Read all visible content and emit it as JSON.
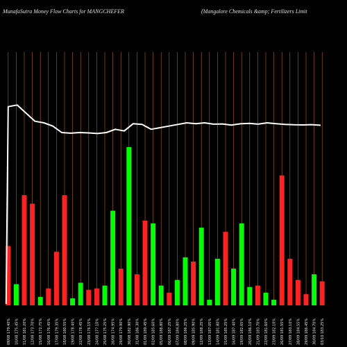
{
  "header": {
    "left": "MunafaSutra  Money Flow  Charts for MANGCHEFER",
    "right": "(Mangalore    Chemicals &amp; Fertilizers Limit"
  },
  "chart_data": {
    "type": "bar",
    "title": "MunafaSutra  Money Flow  Charts for MANGCHEFER",
    "subtitle": "(Mangalore    Chemicals &amp; Fertilizers Limit",
    "grid": {
      "vertical": true,
      "horizontal": false
    },
    "colors": {
      "up": "#00ff00",
      "down": "#ff2020",
      "line": "#ffffff",
      "grid": "#b8660b",
      "background": "#000000"
    },
    "categories": [
      "09/08 179.40%",
      "10/08 175.45%",
      "11/08 181.20%",
      "12/08 173.70%",
      "15/08 172.75%",
      "16/08 176.45%",
      "17/08 179.35%",
      "18/08 180.55%",
      "19/08 178.40%",
      "22/08 178.45%",
      "23/08 176.15%",
      "24/08 177.10%",
      "25/08 175.25%",
      "26/08 174.95%",
      "29/08 179.90%",
      "30/08 182.90%",
      "31/08 186.30%",
      "01/09 189.45%",
      "02/09 185.60%",
      "05/09 188.80%",
      "06/09 187.25%",
      "07/09 184.80%",
      "08/09 186.25%",
      "09/09 185.90%",
      "12/09 188.25%",
      "13/09 187.05%",
      "14/09 181.80%",
      "15/09 185.25%",
      "16/09 187.40%",
      "19/09 182.65%",
      "20/09 186.10%",
      "21/09 183.70%",
      "22/09 181.60%",
      "23/09 182.10%",
      "26/09 181.55%",
      "27/09 183.10%",
      "28/09 184.55%",
      "29/09 186.45%",
      "30/09 184.70%",
      "03/10 183.25%"
    ],
    "values": [
      -42,
      15,
      -78,
      -72,
      6,
      -12,
      -38,
      -78,
      5,
      16,
      -11,
      -12,
      14,
      67,
      -26,
      112,
      -22,
      -60,
      58,
      14,
      -9,
      18,
      34,
      -31,
      55,
      4,
      33,
      -52,
      26,
      58,
      13,
      -14,
      9,
      4,
      -92,
      -33,
      -18,
      -8,
      22,
      -17
    ],
    "price_line": [
      182,
      183,
      178,
      173,
      172,
      170,
      166,
      165.6,
      166,
      165.8,
      165.4,
      166,
      168,
      167,
      171.5,
      171,
      168,
      169,
      170,
      171,
      172,
      171.5,
      172,
      171.2,
      171.3,
      170.6,
      171.4,
      171.7,
      171.2,
      172,
      171.5,
      171,
      170.8,
      170.7,
      170.9,
      170.5
    ],
    "price_start": 40
  }
}
